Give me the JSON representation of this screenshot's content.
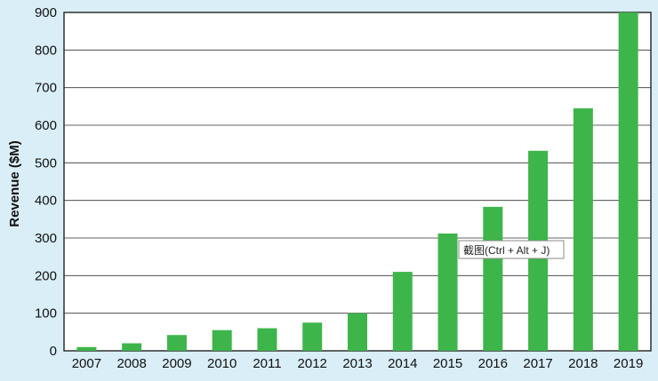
{
  "chart_data": {
    "type": "bar",
    "ylabel": "Revenue ($M)",
    "xlabel": "",
    "ylim": [
      0,
      900
    ],
    "yticks": [
      0,
      100,
      200,
      300,
      400,
      500,
      600,
      700,
      800,
      900
    ],
    "grid": true,
    "categories": [
      "2007",
      "2008",
      "2009",
      "2010",
      "2011",
      "2012",
      "2013",
      "2014",
      "2015",
      "2016",
      "2017",
      "2018",
      "2019"
    ],
    "values": [
      10,
      20,
      42,
      55,
      60,
      75,
      100,
      210,
      312,
      383,
      532,
      645,
      900
    ],
    "colors": {
      "bar": "#3db54a",
      "background": "#d9eef6",
      "plot": "#ffffff"
    }
  },
  "tooltip": {
    "text": "截图(Ctrl + Alt + J)"
  }
}
